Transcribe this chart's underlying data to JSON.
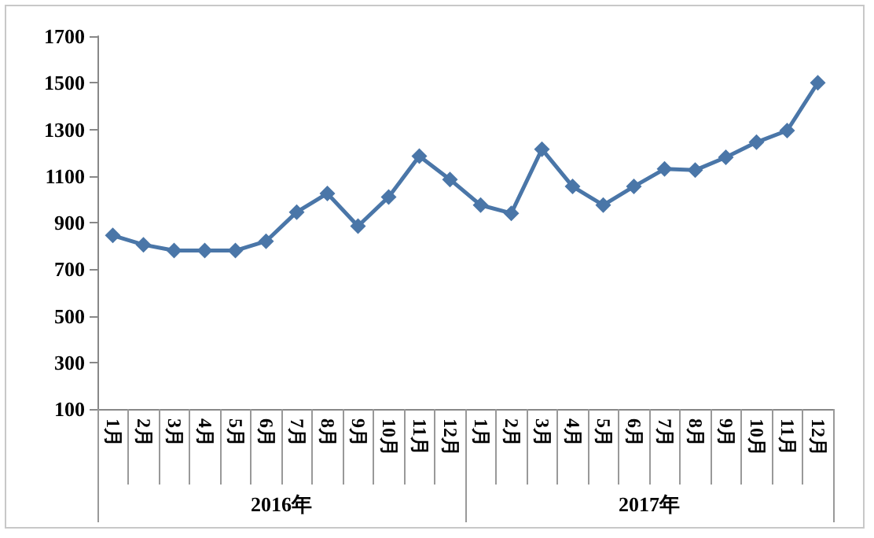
{
  "chart_data": {
    "type": "line",
    "categories": [
      "1月",
      "2月",
      "3月",
      "4月",
      "5月",
      "6月",
      "7月",
      "8月",
      "9月",
      "10月",
      "11月",
      "12月",
      "1月",
      "2月",
      "3月",
      "4月",
      "5月",
      "6月",
      "7月",
      "8月",
      "9月",
      "10月",
      "11月",
      "12月"
    ],
    "series": [
      {
        "color": "#4a76a8",
        "values": [
          845,
          805,
          780,
          780,
          780,
          820,
          945,
          1025,
          885,
          1010,
          1185,
          1085,
          975,
          940,
          1215,
          1055,
          975,
          1055,
          1130,
          1125,
          1180,
          1245,
          1295,
          1500
        ]
      }
    ],
    "annotations": [
      "2016年",
      "2017年"
    ],
    "ylim": [
      100,
      1700
    ],
    "yticks": [
      100,
      300,
      500,
      700,
      900,
      1100,
      1300,
      1500,
      1700
    ],
    "grid": false,
    "marker": "diamond",
    "line_style": "solid"
  }
}
